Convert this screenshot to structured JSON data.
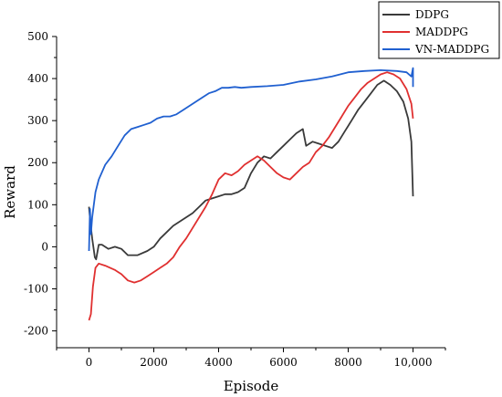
{
  "chart_data": {
    "type": "line",
    "xlabel": "Episode",
    "ylabel": "Reward",
    "xlim": [
      -1000,
      11000
    ],
    "ylim": [
      -240,
      500
    ],
    "x_ticks": [
      0,
      2000,
      4000,
      6000,
      8000,
      10000
    ],
    "x_tick_labels": [
      "0",
      "2000",
      "4000",
      "6000",
      "8000",
      "10,000"
    ],
    "y_ticks": [
      -200,
      -100,
      0,
      100,
      200,
      300,
      400,
      500
    ],
    "y_tick_labels": [
      "-200",
      "-100",
      "0",
      "100",
      "200",
      "300",
      "400",
      "500"
    ],
    "grid": false,
    "legend_position": "top-right",
    "series": [
      {
        "name": "DDPG",
        "color": "#3a3a3a",
        "points": [
          [
            0,
            95
          ],
          [
            40,
            60
          ],
          [
            100,
            20
          ],
          [
            180,
            -25
          ],
          [
            220,
            -30
          ],
          [
            300,
            5
          ],
          [
            400,
            5
          ],
          [
            600,
            -5
          ],
          [
            800,
            0
          ],
          [
            1000,
            -5
          ],
          [
            1200,
            -20
          ],
          [
            1500,
            -20
          ],
          [
            1800,
            -10
          ],
          [
            2000,
            0
          ],
          [
            2200,
            20
          ],
          [
            2400,
            35
          ],
          [
            2600,
            50
          ],
          [
            2800,
            60
          ],
          [
            3000,
            70
          ],
          [
            3200,
            80
          ],
          [
            3400,
            95
          ],
          [
            3600,
            110
          ],
          [
            3800,
            115
          ],
          [
            4000,
            120
          ],
          [
            4200,
            125
          ],
          [
            4400,
            125
          ],
          [
            4600,
            130
          ],
          [
            4800,
            140
          ],
          [
            5000,
            175
          ],
          [
            5200,
            200
          ],
          [
            5400,
            215
          ],
          [
            5600,
            210
          ],
          [
            5800,
            225
          ],
          [
            6000,
            240
          ],
          [
            6200,
            255
          ],
          [
            6400,
            270
          ],
          [
            6600,
            280
          ],
          [
            6700,
            240
          ],
          [
            6900,
            250
          ],
          [
            7100,
            245
          ],
          [
            7300,
            240
          ],
          [
            7500,
            235
          ],
          [
            7700,
            250
          ],
          [
            7900,
            275
          ],
          [
            8100,
            300
          ],
          [
            8300,
            325
          ],
          [
            8500,
            345
          ],
          [
            8700,
            365
          ],
          [
            8900,
            385
          ],
          [
            9100,
            395
          ],
          [
            9300,
            385
          ],
          [
            9500,
            370
          ],
          [
            9700,
            345
          ],
          [
            9850,
            305
          ],
          [
            9950,
            250
          ],
          [
            10000,
            120
          ]
        ]
      },
      {
        "name": "MADDPG",
        "color": "#e03030",
        "points": [
          [
            0,
            -175
          ],
          [
            60,
            -160
          ],
          [
            120,
            -95
          ],
          [
            200,
            -50
          ],
          [
            300,
            -40
          ],
          [
            500,
            -45
          ],
          [
            800,
            -55
          ],
          [
            1000,
            -65
          ],
          [
            1200,
            -80
          ],
          [
            1400,
            -85
          ],
          [
            1600,
            -80
          ],
          [
            1800,
            -70
          ],
          [
            2000,
            -60
          ],
          [
            2200,
            -50
          ],
          [
            2400,
            -40
          ],
          [
            2600,
            -25
          ],
          [
            2800,
            0
          ],
          [
            3000,
            20
          ],
          [
            3200,
            45
          ],
          [
            3400,
            70
          ],
          [
            3600,
            95
          ],
          [
            3800,
            125
          ],
          [
            4000,
            160
          ],
          [
            4200,
            175
          ],
          [
            4400,
            170
          ],
          [
            4600,
            180
          ],
          [
            4800,
            195
          ],
          [
            5000,
            205
          ],
          [
            5200,
            215
          ],
          [
            5400,
            205
          ],
          [
            5600,
            190
          ],
          [
            5800,
            175
          ],
          [
            6000,
            165
          ],
          [
            6200,
            160
          ],
          [
            6400,
            175
          ],
          [
            6600,
            190
          ],
          [
            6800,
            200
          ],
          [
            7000,
            225
          ],
          [
            7200,
            240
          ],
          [
            7400,
            260
          ],
          [
            7600,
            285
          ],
          [
            7800,
            310
          ],
          [
            8000,
            335
          ],
          [
            8200,
            355
          ],
          [
            8400,
            375
          ],
          [
            8600,
            390
          ],
          [
            8800,
            400
          ],
          [
            9000,
            410
          ],
          [
            9200,
            415
          ],
          [
            9400,
            410
          ],
          [
            9600,
            400
          ],
          [
            9800,
            375
          ],
          [
            9950,
            340
          ],
          [
            10000,
            305
          ]
        ]
      },
      {
        "name": "VN-MADDPG",
        "color": "#2060d0",
        "points": [
          [
            0,
            -10
          ],
          [
            30,
            90
          ],
          [
            60,
            30
          ],
          [
            100,
            70
          ],
          [
            200,
            130
          ],
          [
            300,
            160
          ],
          [
            500,
            195
          ],
          [
            700,
            215
          ],
          [
            900,
            240
          ],
          [
            1100,
            265
          ],
          [
            1300,
            280
          ],
          [
            1500,
            285
          ],
          [
            1700,
            290
          ],
          [
            1900,
            295
          ],
          [
            2100,
            305
          ],
          [
            2300,
            310
          ],
          [
            2500,
            310
          ],
          [
            2700,
            315
          ],
          [
            2900,
            325
          ],
          [
            3100,
            335
          ],
          [
            3300,
            345
          ],
          [
            3500,
            355
          ],
          [
            3700,
            365
          ],
          [
            3900,
            370
          ],
          [
            4100,
            378
          ],
          [
            4300,
            378
          ],
          [
            4500,
            380
          ],
          [
            4700,
            378
          ],
          [
            5000,
            380
          ],
          [
            5500,
            382
          ],
          [
            6000,
            385
          ],
          [
            6500,
            393
          ],
          [
            7000,
            398
          ],
          [
            7500,
            405
          ],
          [
            8000,
            415
          ],
          [
            8500,
            418
          ],
          [
            9000,
            420
          ],
          [
            9500,
            418
          ],
          [
            9800,
            415
          ],
          [
            9950,
            405
          ],
          [
            10000,
            425
          ],
          [
            10000,
            380
          ]
        ]
      }
    ]
  }
}
